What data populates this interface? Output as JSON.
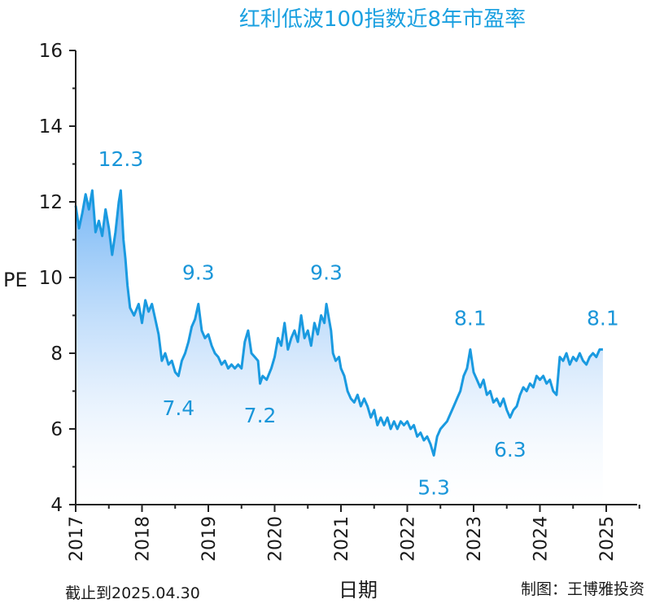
{
  "chart_data": {
    "type": "area",
    "title": "红利低波100指数近8年市盈率",
    "ylabel": "PE",
    "xlabel": "日期",
    "ylim": [
      4,
      16
    ],
    "yticks": [
      4,
      6,
      8,
      10,
      12,
      14,
      16
    ],
    "xlim": [
      2017,
      2025.3
    ],
    "xticks": [
      "2017",
      "2018",
      "2019",
      "2020",
      "2021",
      "2022",
      "2023",
      "2024",
      "2025"
    ],
    "grid": false,
    "line_color": "#1a9ae0",
    "fill_top_color": "#6fb3f5",
    "fill_bottom_color": "#ffffff",
    "annotations": [
      {
        "label": "12.3",
        "x": 2017.68,
        "y": 12.3
      },
      {
        "label": "7.4",
        "x": 2018.55,
        "y": 7.4
      },
      {
        "label": "9.3",
        "x": 2018.85,
        "y": 9.3
      },
      {
        "label": "7.2",
        "x": 2019.78,
        "y": 7.2
      },
      {
        "label": "9.3",
        "x": 2020.78,
        "y": 9.3
      },
      {
        "label": "5.3",
        "x": 2022.4,
        "y": 5.3
      },
      {
        "label": "8.1",
        "x": 2022.95,
        "y": 8.1
      },
      {
        "label": "6.3",
        "x": 2023.55,
        "y": 6.3
      },
      {
        "label": "8.1",
        "x": 2024.95,
        "y": 8.1
      }
    ],
    "series": [
      {
        "points": [
          [
            2017.0,
            11.9
          ],
          [
            2017.05,
            11.3
          ],
          [
            2017.1,
            11.7
          ],
          [
            2017.15,
            12.2
          ],
          [
            2017.2,
            11.8
          ],
          [
            2017.25,
            12.3
          ],
          [
            2017.3,
            11.2
          ],
          [
            2017.35,
            11.5
          ],
          [
            2017.4,
            11.1
          ],
          [
            2017.45,
            11.8
          ],
          [
            2017.5,
            11.3
          ],
          [
            2017.55,
            10.6
          ],
          [
            2017.6,
            11.2
          ],
          [
            2017.65,
            12.0
          ],
          [
            2017.68,
            12.3
          ],
          [
            2017.72,
            11.0
          ],
          [
            2017.75,
            10.5
          ],
          [
            2017.78,
            9.8
          ],
          [
            2017.82,
            9.2
          ],
          [
            2017.88,
            9.0
          ],
          [
            2017.95,
            9.3
          ],
          [
            2018.0,
            8.8
          ],
          [
            2018.05,
            9.4
          ],
          [
            2018.1,
            9.1
          ],
          [
            2018.15,
            9.3
          ],
          [
            2018.2,
            8.9
          ],
          [
            2018.25,
            8.5
          ],
          [
            2018.3,
            7.8
          ],
          [
            2018.35,
            8.0
          ],
          [
            2018.4,
            7.7
          ],
          [
            2018.45,
            7.8
          ],
          [
            2018.5,
            7.5
          ],
          [
            2018.55,
            7.4
          ],
          [
            2018.6,
            7.8
          ],
          [
            2018.65,
            8.0
          ],
          [
            2018.7,
            8.3
          ],
          [
            2018.75,
            8.7
          ],
          [
            2018.8,
            8.9
          ],
          [
            2018.85,
            9.3
          ],
          [
            2018.9,
            8.6
          ],
          [
            2018.95,
            8.4
          ],
          [
            2019.0,
            8.5
          ],
          [
            2019.05,
            8.2
          ],
          [
            2019.1,
            8.0
          ],
          [
            2019.15,
            7.9
          ],
          [
            2019.2,
            7.7
          ],
          [
            2019.25,
            7.8
          ],
          [
            2019.3,
            7.6
          ],
          [
            2019.35,
            7.7
          ],
          [
            2019.4,
            7.6
          ],
          [
            2019.45,
            7.7
          ],
          [
            2019.5,
            7.6
          ],
          [
            2019.55,
            8.3
          ],
          [
            2019.6,
            8.6
          ],
          [
            2019.65,
            8.0
          ],
          [
            2019.7,
            7.9
          ],
          [
            2019.75,
            7.8
          ],
          [
            2019.78,
            7.2
          ],
          [
            2019.82,
            7.4
          ],
          [
            2019.88,
            7.3
          ],
          [
            2019.95,
            7.6
          ],
          [
            2020.0,
            7.9
          ],
          [
            2020.05,
            8.4
          ],
          [
            2020.1,
            8.2
          ],
          [
            2020.15,
            8.8
          ],
          [
            2020.2,
            8.1
          ],
          [
            2020.25,
            8.4
          ],
          [
            2020.3,
            8.6
          ],
          [
            2020.35,
            8.3
          ],
          [
            2020.4,
            9.0
          ],
          [
            2020.45,
            8.4
          ],
          [
            2020.5,
            8.6
          ],
          [
            2020.55,
            8.2
          ],
          [
            2020.6,
            8.8
          ],
          [
            2020.65,
            8.5
          ],
          [
            2020.7,
            9.0
          ],
          [
            2020.75,
            8.8
          ],
          [
            2020.78,
            9.3
          ],
          [
            2020.82,
            8.9
          ],
          [
            2020.85,
            8.6
          ],
          [
            2020.88,
            8.0
          ],
          [
            2020.92,
            7.8
          ],
          [
            2020.97,
            7.9
          ],
          [
            2021.0,
            7.6
          ],
          [
            2021.05,
            7.4
          ],
          [
            2021.1,
            7.0
          ],
          [
            2021.15,
            6.8
          ],
          [
            2021.2,
            6.7
          ],
          [
            2021.25,
            6.9
          ],
          [
            2021.3,
            6.6
          ],
          [
            2021.35,
            6.8
          ],
          [
            2021.4,
            6.6
          ],
          [
            2021.45,
            6.3
          ],
          [
            2021.5,
            6.5
          ],
          [
            2021.55,
            6.1
          ],
          [
            2021.6,
            6.3
          ],
          [
            2021.65,
            6.1
          ],
          [
            2021.7,
            6.3
          ],
          [
            2021.75,
            6.0
          ],
          [
            2021.8,
            6.2
          ],
          [
            2021.85,
            6.0
          ],
          [
            2021.9,
            6.2
          ],
          [
            2021.95,
            6.1
          ],
          [
            2022.0,
            6.2
          ],
          [
            2022.05,
            6.0
          ],
          [
            2022.1,
            6.1
          ],
          [
            2022.15,
            5.8
          ],
          [
            2022.2,
            5.9
          ],
          [
            2022.25,
            5.7
          ],
          [
            2022.3,
            5.8
          ],
          [
            2022.35,
            5.6
          ],
          [
            2022.4,
            5.3
          ],
          [
            2022.45,
            5.8
          ],
          [
            2022.5,
            6.0
          ],
          [
            2022.55,
            6.1
          ],
          [
            2022.6,
            6.2
          ],
          [
            2022.65,
            6.4
          ],
          [
            2022.7,
            6.6
          ],
          [
            2022.75,
            6.8
          ],
          [
            2022.8,
            7.0
          ],
          [
            2022.85,
            7.4
          ],
          [
            2022.9,
            7.6
          ],
          [
            2022.95,
            8.1
          ],
          [
            2023.0,
            7.5
          ],
          [
            2023.05,
            7.3
          ],
          [
            2023.1,
            7.1
          ],
          [
            2023.15,
            7.3
          ],
          [
            2023.2,
            6.9
          ],
          [
            2023.25,
            7.0
          ],
          [
            2023.3,
            6.7
          ],
          [
            2023.35,
            6.8
          ],
          [
            2023.4,
            6.6
          ],
          [
            2023.45,
            6.8
          ],
          [
            2023.5,
            6.5
          ],
          [
            2023.55,
            6.3
          ],
          [
            2023.6,
            6.5
          ],
          [
            2023.65,
            6.6
          ],
          [
            2023.7,
            6.9
          ],
          [
            2023.75,
            7.1
          ],
          [
            2023.8,
            7.0
          ],
          [
            2023.85,
            7.2
          ],
          [
            2023.9,
            7.1
          ],
          [
            2023.95,
            7.4
          ],
          [
            2024.0,
            7.3
          ],
          [
            2024.05,
            7.4
          ],
          [
            2024.1,
            7.2
          ],
          [
            2024.15,
            7.3
          ],
          [
            2024.2,
            7.0
          ],
          [
            2024.25,
            6.9
          ],
          [
            2024.3,
            7.9
          ],
          [
            2024.35,
            7.8
          ],
          [
            2024.4,
            8.0
          ],
          [
            2024.45,
            7.7
          ],
          [
            2024.5,
            7.9
          ],
          [
            2024.55,
            7.8
          ],
          [
            2024.6,
            8.0
          ],
          [
            2024.65,
            7.8
          ],
          [
            2024.7,
            7.7
          ],
          [
            2024.75,
            7.9
          ],
          [
            2024.8,
            8.0
          ],
          [
            2024.85,
            7.9
          ],
          [
            2024.9,
            8.1
          ],
          [
            2024.95,
            8.1
          ]
        ]
      }
    ]
  },
  "footer": {
    "date_note": "截止到2025.04.30",
    "credit": "制图：王博雅投资"
  }
}
